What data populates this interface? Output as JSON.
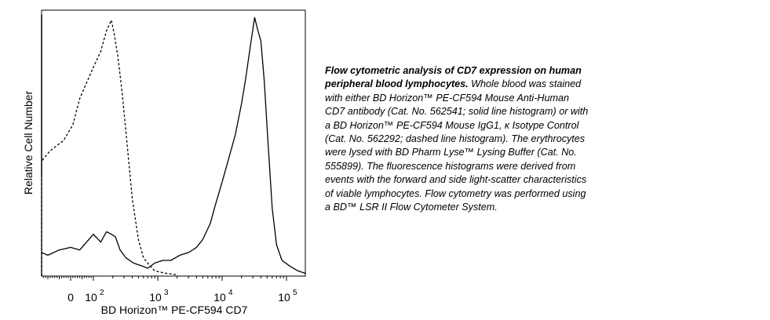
{
  "chart_data": {
    "type": "area",
    "title": "",
    "xlabel": "BD Horizon™ PE-CF594 CD7",
    "ylabel": "Relative Cell Number",
    "x_scale": "biexponential",
    "x_ticks": [
      {
        "value": 0,
        "label": "0",
        "exp": ""
      },
      {
        "value": 100,
        "label": "10",
        "exp": "2"
      },
      {
        "value": 1000,
        "label": "10",
        "exp": "3"
      },
      {
        "value": 10000,
        "label": "10",
        "exp": "4"
      },
      {
        "value": 100000,
        "label": "10",
        "exp": "5"
      }
    ],
    "y_ticks_visible": false,
    "grid": false,
    "legend": "none",
    "series": [
      {
        "style": "dashed",
        "x": [
          -260,
          -230,
          -215,
          -200,
          -150,
          -90,
          -30,
          10,
          40,
          70,
          100,
          130,
          160,
          190,
          210,
          240,
          280,
          330,
          400,
          500,
          600,
          750,
          900,
          1100,
          1400,
          2000
        ],
        "y": [
          0.0,
          1.0,
          0.55,
          0.38,
          0.44,
          0.48,
          0.52,
          0.58,
          0.68,
          0.74,
          0.8,
          0.86,
          0.94,
          0.98,
          0.93,
          0.84,
          0.7,
          0.52,
          0.3,
          0.14,
          0.07,
          0.04,
          0.02,
          0.015,
          0.01,
          0.005
        ]
      },
      {
        "style": "solid",
        "x": [
          -260,
          -240,
          -220,
          -200,
          -170,
          -140,
          -100,
          -50,
          0,
          40,
          70,
          100,
          130,
          160,
          190,
          220,
          260,
          320,
          420,
          550,
          700,
          900,
          1200,
          1600,
          2200,
          3000,
          4000,
          5000,
          6500,
          8000,
          10000,
          13000,
          16000,
          20000,
          23000,
          26000,
          29000,
          32000,
          36000,
          40000,
          45000,
          52000,
          60000,
          70000,
          85000,
          110000,
          150000,
          200000
        ],
        "y": [
          0.0,
          1.0,
          0.13,
          0.1,
          0.07,
          0.09,
          0.08,
          0.1,
          0.11,
          0.1,
          0.13,
          0.16,
          0.13,
          0.17,
          0.16,
          0.15,
          0.1,
          0.07,
          0.05,
          0.04,
          0.03,
          0.05,
          0.06,
          0.06,
          0.08,
          0.09,
          0.11,
          0.14,
          0.2,
          0.28,
          0.36,
          0.46,
          0.54,
          0.66,
          0.75,
          0.84,
          0.92,
          0.99,
          0.94,
          0.9,
          0.75,
          0.5,
          0.26,
          0.12,
          0.06,
          0.04,
          0.02,
          0.01
        ]
      }
    ]
  },
  "caption": {
    "bold": "Flow cytometric analysis of CD7 expression on human peripheral blood lymphocytes.",
    "lines": [
      {
        "bold": "Flow cytometric analysis of CD7 expression on human",
        "text": ""
      },
      {
        "bold": "peripheral blood lymphocytes.",
        "text": " Whole blood was stained"
      },
      {
        "bold": "",
        "text": "with either BD Horizon™ PE-CF594 Mouse Anti-Human"
      },
      {
        "bold": "",
        "text": "CD7 antibody (Cat. No. 562541; solid line histogram) or with"
      },
      {
        "bold": "",
        "text": "a BD Horizon™ PE-CF594 Mouse IgG1, κ Isotype Control"
      },
      {
        "bold": "",
        "text": "(Cat. No. 562292; dashed line histogram). The erythrocytes"
      },
      {
        "bold": "",
        "text": "were lysed with BD Pharm Lyse™ Lysing Buffer (Cat. No."
      },
      {
        "bold": "",
        "text": "555899). The fluorescence histograms were derived from"
      },
      {
        "bold": "",
        "text": "events with the forward and side light-scatter characteristics"
      },
      {
        "bold": "",
        "text": "of viable lymphocytes. Flow cytometry was performed using"
      },
      {
        "bold": "",
        "text": "a BD™ LSR II Flow Cytometer System."
      }
    ]
  }
}
